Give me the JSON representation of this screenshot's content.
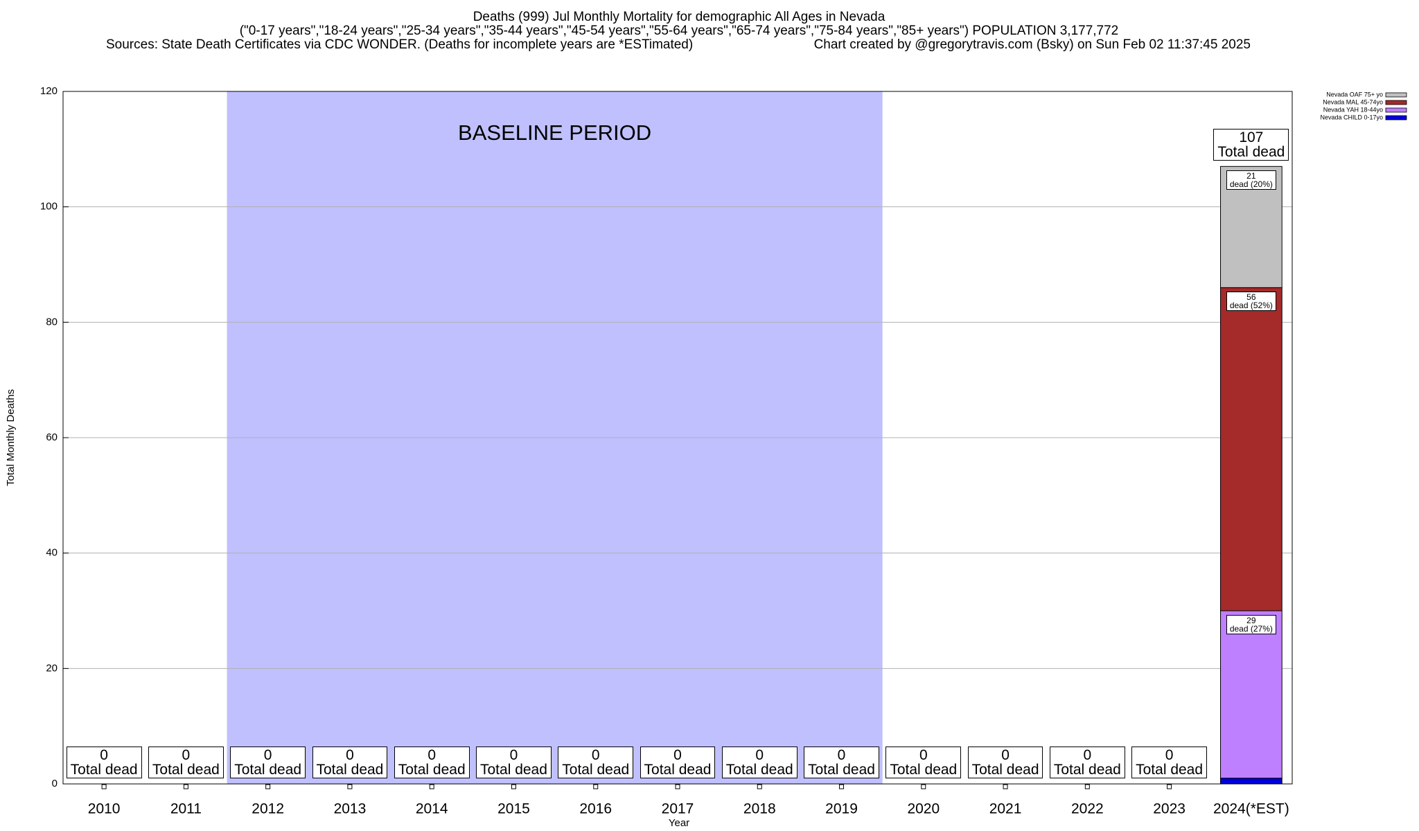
{
  "chart_data": {
    "type": "stacked_bar",
    "title": "Deaths (999) Jul Monthly Mortality for demographic All Ages in Nevada",
    "subtitle": "(\"0-17 years\",\"18-24 years\",\"25-34 years\",\"35-44 years\",\"45-54 years\",\"55-64 years\",\"65-74 years\",\"75-84 years\",\"85+ years\") POPULATION 3,177,772",
    "source": "Sources: State Death Certificates via CDC WONDER. (Deaths for incomplete years are *ESTimated)",
    "credit": "Chart created by @gregorytravis.com (Bsky) on Sun Feb 02 11:37:45 2025",
    "x_label": "Year",
    "y_label": "Total Monthly Deaths",
    "categories": [
      "2010",
      "2011",
      "2012",
      "2013",
      "2014",
      "2015",
      "2016",
      "2017",
      "2018",
      "2019",
      "2020",
      "2021",
      "2022",
      "2023",
      "2024(*EST)"
    ],
    "series": [
      {
        "name": "Nevada CHILD 0-17yo",
        "color": "#0000dd",
        "values": [
          0,
          0,
          0,
          0,
          0,
          0,
          0,
          0,
          0,
          0,
          0,
          0,
          0,
          0,
          1
        ]
      },
      {
        "name": "Nevada YAH 18-44yo",
        "color": "#bf80ff",
        "values": [
          0,
          0,
          0,
          0,
          0,
          0,
          0,
          0,
          0,
          0,
          0,
          0,
          0,
          0,
          29
        ],
        "value_labels": [
          null,
          null,
          null,
          null,
          null,
          null,
          null,
          null,
          null,
          null,
          null,
          null,
          null,
          null,
          "29\ndead (27%)"
        ]
      },
      {
        "name": "Nevada MAL 45-74yo",
        "color": "#a52a2a",
        "values": [
          0,
          0,
          0,
          0,
          0,
          0,
          0,
          0,
          0,
          0,
          0,
          0,
          0,
          0,
          56
        ],
        "value_labels": [
          null,
          null,
          null,
          null,
          null,
          null,
          null,
          null,
          null,
          null,
          null,
          null,
          null,
          null,
          "56\ndead (52%)"
        ]
      },
      {
        "name": "Nevada OAF 75+ yo",
        "color": "#c0c0c0",
        "values": [
          0,
          0,
          0,
          0,
          0,
          0,
          0,
          0,
          0,
          0,
          0,
          0,
          0,
          0,
          21
        ],
        "value_labels": [
          null,
          null,
          null,
          null,
          null,
          null,
          null,
          null,
          null,
          null,
          null,
          null,
          null,
          null,
          "21\ndead (20%)"
        ]
      }
    ],
    "totals": [
      0,
      0,
      0,
      0,
      0,
      0,
      0,
      0,
      0,
      0,
      0,
      0,
      0,
      0,
      107
    ],
    "total_labels": [
      "0\nTotal dead",
      "0\nTotal dead",
      "0\nTotal dead",
      "0\nTotal dead",
      "0\nTotal dead",
      "0\nTotal dead",
      "0\nTotal dead",
      "0\nTotal dead",
      "0\nTotal dead",
      "0\nTotal dead",
      "0\nTotal dead",
      "0\nTotal dead",
      "0\nTotal dead",
      "0\nTotal dead",
      "107\nTotal dead"
    ],
    "baseline": {
      "label": "BASELINE PERIOD",
      "from": "2012",
      "to": "2019",
      "color": "#c0c0ff"
    },
    "ylim": [
      0,
      120
    ],
    "yticks": [
      0,
      20,
      40,
      60,
      80,
      100,
      120
    ],
    "grid": true,
    "legend": "top-right"
  }
}
